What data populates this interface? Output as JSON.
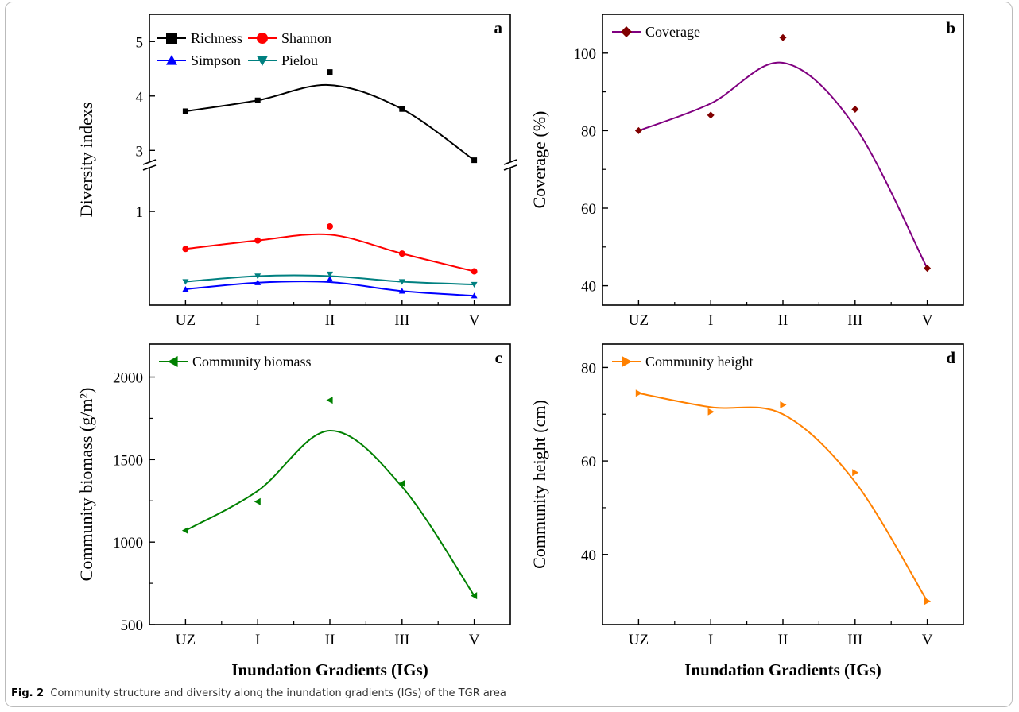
{
  "caption": {
    "label": "Fig. 2",
    "text": "Community structure and diversity along the inundation gradients (IGs) of the TGR area"
  },
  "chart_data": [
    {
      "panel": "a",
      "type": "line",
      "ylabel": "Diversity indexs",
      "xlabel": "",
      "categories": [
        "UZ",
        "I",
        "II",
        "III",
        "V"
      ],
      "axis_break": true,
      "upper_ylim": [
        2.8,
        5.5
      ],
      "upper_yticks": [
        3,
        4,
        5
      ],
      "lower_ylim": [
        0,
        1.45
      ],
      "lower_yticks": [
        1
      ],
      "legend": "top-left",
      "series": [
        {
          "name": "Richness",
          "values": [
            3.72,
            3.92,
            4.44,
            3.76,
            2.82
          ],
          "color": "#000000",
          "marker": "square",
          "segment": "upper"
        },
        {
          "name": "Shannon",
          "values": [
            0.6,
            0.69,
            0.84,
            0.55,
            0.36
          ],
          "color": "#ff0000",
          "marker": "circle",
          "segment": "lower"
        },
        {
          "name": "Simpson",
          "values": [
            0.17,
            0.24,
            0.28,
            0.15,
            0.1
          ],
          "color": "#0000ff",
          "marker": "triangle-up",
          "segment": "lower"
        },
        {
          "name": "Pielou",
          "values": [
            0.25,
            0.31,
            0.33,
            0.25,
            0.22
          ],
          "color": "#008080",
          "marker": "triangle-down",
          "segment": "lower"
        }
      ]
    },
    {
      "panel": "b",
      "type": "line",
      "ylabel": "Coverage (%)",
      "xlabel": "",
      "categories": [
        "UZ",
        "I",
        "II",
        "III",
        "V"
      ],
      "ylim": [
        35,
        110
      ],
      "yticks": [
        40,
        60,
        80,
        100
      ],
      "legend": "top-left",
      "series": [
        {
          "name": "Coverage",
          "values": [
            80,
            84,
            104,
            85.5,
            44.5
          ],
          "fit": [
            80,
            87,
            97.5,
            81,
            44.5
          ],
          "color": "#800000",
          "line_color": "#800080",
          "marker": "diamond"
        }
      ]
    },
    {
      "panel": "c",
      "type": "line",
      "ylabel": "Community biomass (g/m²)",
      "xlabel": "Inundation Gradients (IGs)",
      "categories": [
        "UZ",
        "I",
        "II",
        "III",
        "V"
      ],
      "ylim": [
        500,
        2200
      ],
      "yticks": [
        500,
        1000,
        1500,
        2000
      ],
      "legend": "top-left",
      "series": [
        {
          "name": "Community biomass",
          "values": [
            1070,
            1245,
            1860,
            1355,
            675
          ],
          "fit": [
            1070,
            1310,
            1675,
            1335,
            675
          ],
          "color": "#008000",
          "marker": "triangle-left"
        }
      ]
    },
    {
      "panel": "d",
      "type": "line",
      "ylabel": "Community height (cm)",
      "xlabel": "Inundation Gradients (IGs)",
      "categories": [
        "UZ",
        "I",
        "II",
        "III",
        "V"
      ],
      "ylim": [
        25,
        85
      ],
      "yticks": [
        40,
        60,
        80
      ],
      "legend": "top-left",
      "series": [
        {
          "name": "Community height",
          "values": [
            74.5,
            70.5,
            72,
            57.5,
            30
          ],
          "fit": [
            74.5,
            71.5,
            70,
            55.5,
            30
          ],
          "color": "#ff8000",
          "marker": "triangle-right"
        }
      ]
    }
  ]
}
